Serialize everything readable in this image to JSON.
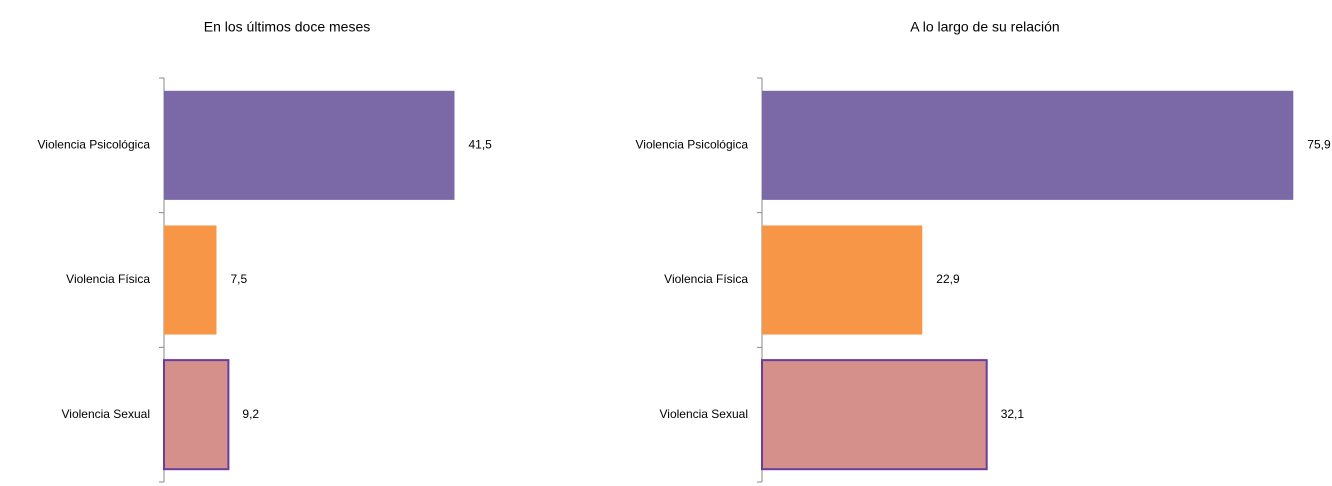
{
  "chart_data": [
    {
      "type": "barh",
      "title": "En los últimos doce meses",
      "categories": [
        "Violencia Psicológica",
        "Violencia Física",
        "Violencia Sexual"
      ],
      "values": [
        41.5,
        7.5,
        9.2
      ],
      "value_labels": [
        "41,5",
        "7,5",
        "9,2"
      ],
      "colors": [
        "#7b68a6",
        "#f79646",
        "#d6908c"
      ],
      "edge_colors": [
        null,
        null,
        "#6a3d9a"
      ],
      "xlim": [
        0,
        80
      ]
    },
    {
      "type": "barh",
      "title": "A lo largo de su relación",
      "categories": [
        "Violencia Psicológica",
        "Violencia Física",
        "Violencia Sexual"
      ],
      "values": [
        75.9,
        22.9,
        32.1
      ],
      "value_labels": [
        "75,9",
        "22,9",
        "32,1"
      ],
      "colors": [
        "#7b68a6",
        "#f79646",
        "#d6908c"
      ],
      "edge_colors": [
        null,
        null,
        "#6a3d9a"
      ],
      "xlim": [
        0,
        80
      ]
    }
  ]
}
